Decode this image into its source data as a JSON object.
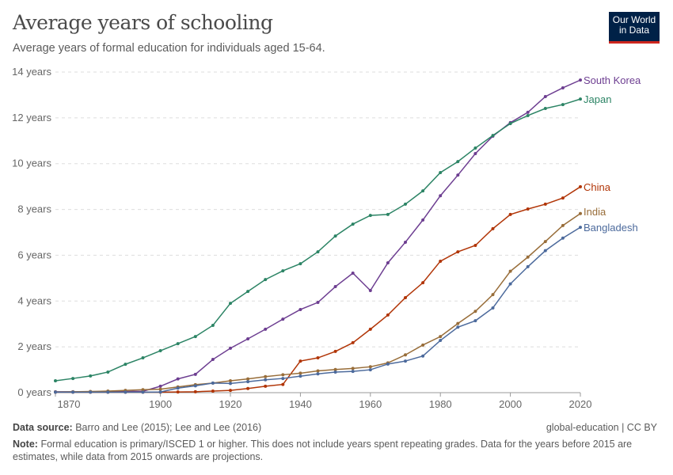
{
  "header": {
    "title": "Average years of schooling",
    "subtitle": "Average years of formal education for individuals aged 15-64.",
    "logo": "Our World in Data"
  },
  "footer": {
    "source_label": "Data source:",
    "source": "Barro and Lee (2015); Lee and Lee (2016)",
    "license": "global-education | CC BY",
    "note_label": "Note:",
    "note": "Formal education is primary/ISCED 1 or higher. This does not include years spent repeating grades. Data for the years before 2015 are estimates, while data from 2015 onwards are projections."
  },
  "chart_data": {
    "type": "line",
    "title": "Average years of schooling",
    "xlim": [
      1870,
      2020
    ],
    "ylim": [
      0,
      14
    ],
    "x_ticks": [
      1870,
      1900,
      1920,
      1940,
      1960,
      1980,
      2000,
      2020
    ],
    "y_ticks": [
      0,
      2,
      4,
      6,
      8,
      10,
      12,
      14
    ],
    "y_tick_labels": [
      "0 years",
      "2 years",
      "4 years",
      "6 years",
      "8 years",
      "10 years",
      "12 years",
      "14 years"
    ],
    "grid": "horizontal dashed",
    "legend": "inline labels at line ends (right)",
    "x": [
      1870,
      1875,
      1880,
      1885,
      1890,
      1895,
      1900,
      1905,
      1910,
      1915,
      1920,
      1925,
      1930,
      1935,
      1940,
      1945,
      1950,
      1955,
      1960,
      1965,
      1970,
      1975,
      1980,
      1985,
      1990,
      1995,
      2000,
      2005,
      2010,
      2015,
      2020
    ],
    "series": [
      {
        "name": "South Korea",
        "color": "#6d3e91",
        "values": [
          0.04,
          0.04,
          0.04,
          0.05,
          0.05,
          0.06,
          0.28,
          0.6,
          0.8,
          1.45,
          1.94,
          2.35,
          2.77,
          3.21,
          3.63,
          3.94,
          4.63,
          5.22,
          4.46,
          5.67,
          6.57,
          7.54,
          8.6,
          9.5,
          10.44,
          11.2,
          11.79,
          12.24,
          12.93,
          13.31,
          13.65
        ]
      },
      {
        "name": "Japan",
        "color": "#2c8465",
        "values": [
          0.52,
          0.62,
          0.73,
          0.9,
          1.24,
          1.52,
          1.83,
          2.14,
          2.45,
          2.94,
          3.9,
          4.42,
          4.94,
          5.32,
          5.63,
          6.15,
          6.84,
          7.36,
          7.74,
          7.78,
          8.23,
          8.81,
          9.61,
          10.09,
          10.68,
          11.23,
          11.75,
          12.1,
          12.41,
          12.58,
          12.82
        ]
      },
      {
        "name": "China",
        "color": "#b13507",
        "values": [
          0.02,
          0.02,
          0.02,
          0.02,
          0.02,
          0.02,
          0.02,
          0.03,
          0.04,
          0.07,
          0.1,
          0.18,
          0.28,
          0.36,
          1.38,
          1.52,
          1.8,
          2.18,
          2.77,
          3.39,
          4.15,
          4.8,
          5.74,
          6.15,
          6.43,
          7.16,
          7.78,
          8.02,
          8.23,
          8.5,
          8.99
        ]
      },
      {
        "name": "India",
        "color": "#986d39",
        "values": [
          0.03,
          0.04,
          0.05,
          0.07,
          0.1,
          0.13,
          0.15,
          0.25,
          0.35,
          0.42,
          0.52,
          0.6,
          0.7,
          0.78,
          0.85,
          0.95,
          1.01,
          1.06,
          1.13,
          1.3,
          1.65,
          2.08,
          2.45,
          3.02,
          3.55,
          4.28,
          5.3,
          5.92,
          6.6,
          7.3,
          7.82
        ]
      },
      {
        "name": "Bangladesh",
        "color": "#4c6a9c",
        "values": [
          0.02,
          0.02,
          0.02,
          0.02,
          0.02,
          0.02,
          0.03,
          0.2,
          0.3,
          0.42,
          0.4,
          0.48,
          0.56,
          0.62,
          0.72,
          0.82,
          0.9,
          0.93,
          1.0,
          1.25,
          1.38,
          1.6,
          2.28,
          2.86,
          3.14,
          3.7,
          4.75,
          5.5,
          6.2,
          6.75,
          7.22
        ]
      }
    ]
  }
}
